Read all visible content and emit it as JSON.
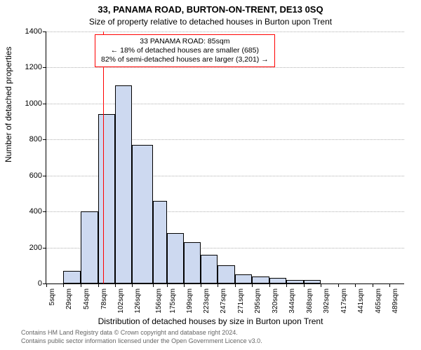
{
  "title": "33, PANAMA ROAD, BURTON-ON-TRENT, DE13 0SQ",
  "subtitle": "Size of property relative to detached houses in Burton upon Trent",
  "ylabel": "Number of detached properties",
  "xlabel": "Distribution of detached houses by size in Burton upon Trent",
  "footer1": "Contains HM Land Registry data © Crown copyright and database right 2024.",
  "footer2": "Contains public sector information licensed under the Open Government Licence v3.0.",
  "callout": {
    "line1": "33 PANAMA ROAD: 85sqm",
    "line2": "← 18% of detached houses are smaller (685)",
    "line3": "82% of semi-detached houses are larger (3,201) →"
  },
  "chart": {
    "type": "histogram",
    "ylim": [
      0,
      1400
    ],
    "ytick_step": 200,
    "bar_fill": "#cdd9f0",
    "bar_border": "#000000",
    "grid_color": "#b0b0b0",
    "background_color": "#ffffff",
    "marker_x": 85,
    "marker_color": "#ff0000",
    "x_categories": [
      "5sqm",
      "29sqm",
      "54sqm",
      "78sqm",
      "102sqm",
      "126sqm",
      "156sqm",
      "175sqm",
      "199sqm",
      "223sqm",
      "247sqm",
      "271sqm",
      "295sqm",
      "320sqm",
      "344sqm",
      "368sqm",
      "392sqm",
      "417sqm",
      "441sqm",
      "465sqm",
      "489sqm"
    ],
    "x_numeric": [
      5,
      29,
      54,
      78,
      102,
      126,
      156,
      175,
      199,
      223,
      247,
      271,
      295,
      320,
      344,
      368,
      392,
      417,
      441,
      465,
      489
    ],
    "values": [
      0,
      70,
      400,
      940,
      1100,
      770,
      460,
      280,
      230,
      160,
      100,
      50,
      40,
      30,
      20,
      20,
      0,
      0,
      0,
      0,
      0
    ],
    "x_range": [
      5,
      510
    ],
    "title_fontsize": 13,
    "subtitle_fontsize": 12,
    "label_fontsize": 12,
    "tick_fontsize": 11
  }
}
